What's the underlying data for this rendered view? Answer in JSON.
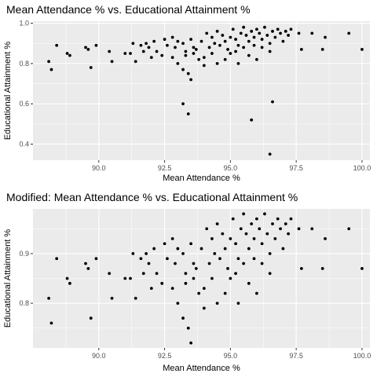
{
  "chart_data": [
    {
      "type": "scatter",
      "title": "Mean Attendance % vs. Educational Attainment %",
      "xlabel": "Mean Attendance %",
      "ylabel": "Educational Attainment %",
      "xlim": [
        87.5,
        100.3
      ],
      "ylim": [
        0.32,
        1.01
      ],
      "x_ticks": [
        90.0,
        92.5,
        95.0,
        97.5,
        100.0
      ],
      "x_tick_labels": [
        "90.0",
        "92.5",
        "95.0",
        "97.5",
        "100.0"
      ],
      "y_ticks": [
        0.4,
        0.6,
        0.8,
        1.0
      ],
      "y_tick_labels": [
        "0.4",
        "0.6",
        "0.8",
        "1.0"
      ],
      "panel_background": "#ebebeb",
      "grid": true,
      "grid_color": "#ffffff",
      "point_color": "#000000",
      "points": [
        [
          88.1,
          0.81
        ],
        [
          88.2,
          0.77
        ],
        [
          88.4,
          0.89
        ],
        [
          88.8,
          0.85
        ],
        [
          88.9,
          0.84
        ],
        [
          89.5,
          0.88
        ],
        [
          89.6,
          0.87
        ],
        [
          89.7,
          0.78
        ],
        [
          89.9,
          0.89
        ],
        [
          90.4,
          0.86
        ],
        [
          90.5,
          0.81
        ],
        [
          91.0,
          0.85
        ],
        [
          91.2,
          0.85
        ],
        [
          91.3,
          0.9
        ],
        [
          91.4,
          0.81
        ],
        [
          91.6,
          0.89
        ],
        [
          91.7,
          0.86
        ],
        [
          91.9,
          0.88
        ],
        [
          92.0,
          0.83
        ],
        [
          92.2,
          0.86
        ],
        [
          92.4,
          0.84
        ],
        [
          92.6,
          0.89
        ],
        [
          92.8,
          0.83
        ],
        [
          93.0,
          0.8
        ],
        [
          93.2,
          0.77
        ],
        [
          93.3,
          0.84
        ],
        [
          93.4,
          0.75
        ],
        [
          93.5,
          0.72
        ],
        [
          93.6,
          0.85
        ],
        [
          93.8,
          0.82
        ],
        [
          94.0,
          0.79
        ],
        [
          93.7,
          0.87
        ],
        [
          93.0,
          0.91
        ],
        [
          92.5,
          0.92
        ],
        [
          92.8,
          0.93
        ],
        [
          93.2,
          0.9
        ],
        [
          93.5,
          0.92
        ],
        [
          93.9,
          0.91
        ],
        [
          94.1,
          0.95
        ],
        [
          94.3,
          0.93
        ],
        [
          94.2,
          0.88
        ],
        [
          94.4,
          0.9
        ],
        [
          94.5,
          0.96
        ],
        [
          94.7,
          0.94
        ],
        [
          94.8,
          0.91
        ],
        [
          94.9,
          0.87
        ],
        [
          95.0,
          0.93
        ],
        [
          95.1,
          0.97
        ],
        [
          95.2,
          0.92
        ],
        [
          95.3,
          0.89
        ],
        [
          95.4,
          0.95
        ],
        [
          95.5,
          0.98
        ],
        [
          95.6,
          0.94
        ],
        [
          95.7,
          0.91
        ],
        [
          95.8,
          0.96
        ],
        [
          95.9,
          0.93
        ],
        [
          96.0,
          0.97
        ],
        [
          96.1,
          0.95
        ],
        [
          96.2,
          0.92
        ],
        [
          96.3,
          0.98
        ],
        [
          96.4,
          0.94
        ],
        [
          96.5,
          0.9
        ],
        [
          96.6,
          0.96
        ],
        [
          96.7,
          0.93
        ],
        [
          96.8,
          0.97
        ],
        [
          96.9,
          0.95
        ],
        [
          97.0,
          0.91
        ],
        [
          97.1,
          0.96
        ],
        [
          97.2,
          0.94
        ],
        [
          94.6,
          0.89
        ],
        [
          94.3,
          0.85
        ],
        [
          94.0,
          0.83
        ],
        [
          93.6,
          0.88
        ],
        [
          95.2,
          0.86
        ],
        [
          95.5,
          0.88
        ],
        [
          95.9,
          0.89
        ],
        [
          96.2,
          0.88
        ],
        [
          95.0,
          0.85
        ],
        [
          94.8,
          0.82
        ],
        [
          96.5,
          0.86
        ],
        [
          95.7,
          0.84
        ],
        [
          96.0,
          0.82
        ],
        [
          95.3,
          0.8
        ],
        [
          94.5,
          0.8
        ],
        [
          93.3,
          0.86
        ],
        [
          92.9,
          0.88
        ],
        [
          92.1,
          0.91
        ],
        [
          91.8,
          0.9
        ],
        [
          97.3,
          0.97
        ],
        [
          97.6,
          0.95
        ],
        [
          97.7,
          0.87
        ],
        [
          98.1,
          0.95
        ],
        [
          98.6,
          0.93
        ],
        [
          98.5,
          0.87
        ],
        [
          99.5,
          0.95
        ],
        [
          100.0,
          0.87
        ],
        [
          93.2,
          0.6
        ],
        [
          93.4,
          0.55
        ],
        [
          95.8,
          0.52
        ],
        [
          96.6,
          0.61
        ],
        [
          96.5,
          0.35
        ]
      ]
    },
    {
      "type": "scatter",
      "title": "Modified: Mean Attendance % vs. Educational Attainment %",
      "xlabel": "Mean Attendance %",
      "ylabel": "Educational Attainment %",
      "xlim": [
        87.5,
        100.3
      ],
      "ylim": [
        0.71,
        0.99
      ],
      "x_ticks": [
        90.0,
        92.5,
        95.0,
        97.5,
        100.0
      ],
      "x_tick_labels": [
        "90.0",
        "92.5",
        "95.0",
        "97.5",
        "100.0"
      ],
      "y_ticks": [
        0.8,
        0.9
      ],
      "y_tick_labels": [
        "0.8",
        "0.9"
      ],
      "panel_background": "#ebebeb",
      "grid": true,
      "grid_color": "#ffffff",
      "point_color": "#000000",
      "points": [
        [
          88.1,
          0.81
        ],
        [
          88.2,
          0.76
        ],
        [
          88.4,
          0.89
        ],
        [
          88.8,
          0.85
        ],
        [
          88.9,
          0.84
        ],
        [
          89.5,
          0.88
        ],
        [
          89.6,
          0.87
        ],
        [
          89.7,
          0.77
        ],
        [
          89.9,
          0.89
        ],
        [
          90.4,
          0.86
        ],
        [
          90.5,
          0.81
        ],
        [
          91.0,
          0.85
        ],
        [
          91.2,
          0.85
        ],
        [
          91.3,
          0.9
        ],
        [
          91.4,
          0.81
        ],
        [
          91.6,
          0.89
        ],
        [
          91.7,
          0.86
        ],
        [
          91.9,
          0.88
        ],
        [
          92.0,
          0.83
        ],
        [
          92.2,
          0.86
        ],
        [
          92.4,
          0.84
        ],
        [
          92.6,
          0.89
        ],
        [
          92.8,
          0.83
        ],
        [
          93.0,
          0.8
        ],
        [
          93.2,
          0.77
        ],
        [
          93.3,
          0.84
        ],
        [
          93.4,
          0.75
        ],
        [
          93.5,
          0.72
        ],
        [
          93.6,
          0.85
        ],
        [
          93.8,
          0.82
        ],
        [
          94.0,
          0.79
        ],
        [
          93.7,
          0.87
        ],
        [
          93.0,
          0.91
        ],
        [
          92.5,
          0.92
        ],
        [
          92.8,
          0.93
        ],
        [
          93.2,
          0.9
        ],
        [
          93.5,
          0.92
        ],
        [
          93.9,
          0.91
        ],
        [
          94.1,
          0.95
        ],
        [
          94.3,
          0.93
        ],
        [
          94.2,
          0.88
        ],
        [
          94.4,
          0.9
        ],
        [
          94.5,
          0.96
        ],
        [
          94.7,
          0.94
        ],
        [
          94.8,
          0.91
        ],
        [
          94.9,
          0.87
        ],
        [
          95.0,
          0.93
        ],
        [
          95.1,
          0.97
        ],
        [
          95.2,
          0.92
        ],
        [
          95.3,
          0.89
        ],
        [
          95.4,
          0.95
        ],
        [
          95.5,
          0.98
        ],
        [
          95.6,
          0.94
        ],
        [
          95.7,
          0.91
        ],
        [
          95.8,
          0.96
        ],
        [
          95.9,
          0.93
        ],
        [
          96.0,
          0.97
        ],
        [
          96.1,
          0.95
        ],
        [
          96.2,
          0.92
        ],
        [
          96.3,
          0.98
        ],
        [
          96.4,
          0.94
        ],
        [
          96.5,
          0.9
        ],
        [
          96.6,
          0.96
        ],
        [
          96.7,
          0.93
        ],
        [
          96.8,
          0.97
        ],
        [
          96.9,
          0.95
        ],
        [
          97.0,
          0.91
        ],
        [
          97.1,
          0.96
        ],
        [
          97.2,
          0.94
        ],
        [
          94.6,
          0.89
        ],
        [
          94.3,
          0.85
        ],
        [
          94.0,
          0.83
        ],
        [
          93.6,
          0.88
        ],
        [
          95.2,
          0.86
        ],
        [
          95.5,
          0.88
        ],
        [
          95.9,
          0.89
        ],
        [
          96.2,
          0.88
        ],
        [
          95.0,
          0.85
        ],
        [
          94.8,
          0.82
        ],
        [
          96.5,
          0.86
        ],
        [
          95.7,
          0.84
        ],
        [
          96.0,
          0.82
        ],
        [
          95.3,
          0.8
        ],
        [
          94.5,
          0.8
        ],
        [
          93.3,
          0.86
        ],
        [
          92.9,
          0.88
        ],
        [
          92.1,
          0.91
        ],
        [
          91.8,
          0.9
        ],
        [
          97.3,
          0.97
        ],
        [
          97.6,
          0.95
        ],
        [
          97.7,
          0.87
        ],
        [
          98.1,
          0.95
        ],
        [
          98.6,
          0.93
        ],
        [
          98.5,
          0.87
        ],
        [
          99.5,
          0.95
        ],
        [
          100.0,
          0.87
        ]
      ]
    }
  ]
}
